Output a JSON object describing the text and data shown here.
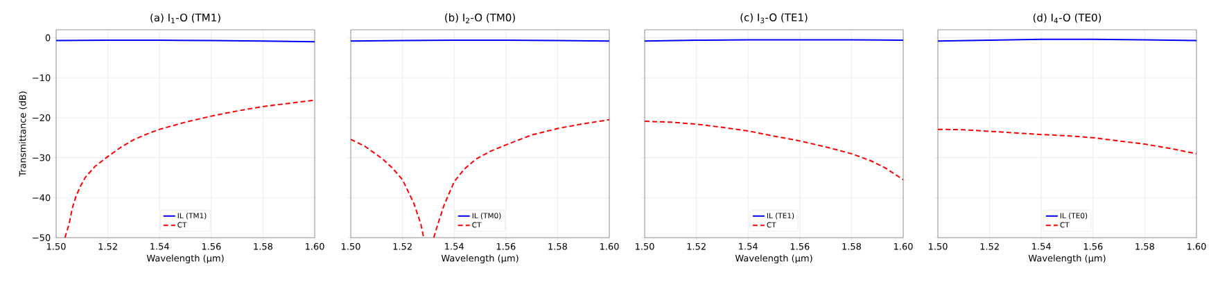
{
  "chart_data": [
    {
      "type": "line",
      "title": "(a)  I$_{1}$-O   (TM1)",
      "xlabel": "Wavelength (μm)",
      "ylabel": "Transmittance (dB)",
      "xlim": [
        1.5,
        1.6
      ],
      "ylim": [
        -50,
        2
      ],
      "xticks": [
        {
          "value": 1.5,
          "label": "1.50"
        },
        {
          "value": 1.52,
          "label": "1.52"
        },
        {
          "value": 1.54,
          "label": "1.54"
        },
        {
          "value": 1.56,
          "label": "1.56"
        },
        {
          "value": 1.58,
          "label": "1.58"
        },
        {
          "value": 1.6,
          "label": "1.60"
        }
      ],
      "yticks": [
        0,
        {
          "value": -10,
          "label": "−10"
        },
        {
          "value": -20,
          "label": "−20"
        },
        {
          "value": -30,
          "label": "−30"
        },
        {
          "value": -40,
          "label": "−40"
        },
        {
          "value": -50,
          "label": "−50"
        }
      ],
      "grid": true,
      "legend": "bottom",
      "series": [
        {
          "name": "IL (TM1)",
          "color": "#0000ff",
          "line_style": "solid",
          "x": [
            1.5,
            1.52,
            1.54,
            1.56,
            1.58,
            1.6
          ],
          "values": [
            -0.7,
            -0.6,
            -0.6,
            -0.7,
            -0.8,
            -1.0
          ]
        },
        {
          "name": "CT",
          "color": "#ff0000",
          "line_style": "dashed",
          "x": [
            1.5034,
            1.505,
            1.5063,
            1.5077,
            1.5095,
            1.5113,
            1.515,
            1.52,
            1.525,
            1.53,
            1.535,
            1.54,
            1.55,
            1.56,
            1.57,
            1.58,
            1.59,
            1.6
          ],
          "values": [
            -50,
            -46.6,
            -42.5,
            -39.6,
            -37,
            -34.9,
            -32.2,
            -29.7,
            -27.4,
            -25.5,
            -24.1,
            -22.9,
            -21.1,
            -19.6,
            -18.3,
            -17.2,
            -16.4,
            -15.6
          ]
        }
      ]
    },
    {
      "type": "line",
      "title": "(b)  I$_{2}$-O   (TM0)",
      "xlabel": "Wavelength (μm)",
      "xlim": [
        1.5,
        1.6
      ],
      "ylim": [
        -50,
        2
      ],
      "xticks": [
        {
          "value": 1.5,
          "label": "1.50"
        },
        {
          "value": 1.52,
          "label": "1.52"
        },
        {
          "value": 1.54,
          "label": "1.54"
        },
        {
          "value": 1.56,
          "label": "1.56"
        },
        {
          "value": 1.58,
          "label": "1.58"
        },
        {
          "value": 1.6,
          "label": "1.60"
        }
      ],
      "yticks": [
        {
          "value": 0,
          "label": null
        },
        {
          "value": -10,
          "label": null
        },
        {
          "value": -20,
          "label": null
        },
        {
          "value": -30,
          "label": null
        },
        {
          "value": -40,
          "label": null
        },
        {
          "value": -50,
          "label": null
        }
      ],
      "grid": true,
      "legend": "bottom",
      "tick_labels": "x",
      "series": [
        {
          "name": "IL (TM0)",
          "color": "#0000ff",
          "line_style": "solid",
          "x": [
            1.5,
            1.52,
            1.54,
            1.56,
            1.58,
            1.6
          ],
          "values": [
            -0.8,
            -0.7,
            -0.6,
            -0.6,
            -0.7,
            -0.8
          ]
        },
        {
          "name": "CT",
          "color": "#ff0000",
          "line_style": "dashed",
          "x": [
            1.5,
            1.5056,
            1.5119,
            1.516,
            1.52,
            1.5244,
            1.5271,
            1.5282,
            1.53,
            1.5321,
            1.5337,
            1.536,
            1.54,
            1.544,
            1.5485,
            1.554,
            1.56,
            1.57,
            1.58,
            1.59,
            1.6
          ],
          "values": [
            -25.4,
            -27.2,
            -30.1,
            -32.5,
            -35.5,
            -41.4,
            -46.6,
            -50,
            null,
            -50,
            -46.6,
            -42,
            -36,
            -32.8,
            -30.3,
            -28.4,
            -26.8,
            -24.3,
            -22.7,
            -21.5,
            -20.5
          ]
        }
      ]
    },
    {
      "type": "line",
      "title": "(c)  I$_{3}$-O   (TE1)",
      "xlabel": "Wavelength (μm)",
      "xlim": [
        1.5,
        1.6
      ],
      "ylim": [
        -50,
        2
      ],
      "xticks": [
        {
          "value": 1.5,
          "label": "1.50"
        },
        {
          "value": 1.52,
          "label": "1.52"
        },
        {
          "value": 1.54,
          "label": "1.54"
        },
        {
          "value": 1.56,
          "label": "1.56"
        },
        {
          "value": 1.58,
          "label": "1.58"
        },
        {
          "value": 1.6,
          "label": "1.60"
        }
      ],
      "yticks": [
        {
          "value": 0,
          "label": null
        },
        {
          "value": -10,
          "label": null
        },
        {
          "value": -20,
          "label": null
        },
        {
          "value": -30,
          "label": null
        },
        {
          "value": -40,
          "label": null
        },
        {
          "value": -50,
          "label": null
        }
      ],
      "grid": true,
      "legend": "bottom",
      "tick_labels": "x",
      "series": [
        {
          "name": "IL (TE1)",
          "color": "#0000ff",
          "line_style": "solid",
          "x": [
            1.5,
            1.52,
            1.54,
            1.56,
            1.58,
            1.6
          ],
          "values": [
            -0.8,
            -0.6,
            -0.5,
            -0.5,
            -0.5,
            -0.6
          ]
        },
        {
          "name": "CT",
          "color": "#ff0000",
          "line_style": "dashed",
          "x": [
            1.5,
            1.51,
            1.52,
            1.53,
            1.54,
            1.55,
            1.56,
            1.5706,
            1.58,
            1.5876,
            1.5929,
            1.6
          ],
          "values": [
            -20.9,
            -21.1,
            -21.6,
            -22.4,
            -23.3,
            -24.6,
            -25.8,
            -27.4,
            -29.0,
            -30.8,
            -32.5,
            -35.5
          ]
        }
      ]
    },
    {
      "type": "line",
      "title": "(d)  I$_{4}$-O   (TE0)",
      "xlabel": "Wavelength (μm)",
      "xlim": [
        1.5,
        1.6
      ],
      "ylim": [
        -50,
        2
      ],
      "xticks": [
        {
          "value": 1.5,
          "label": "1.50"
        },
        {
          "value": 1.52,
          "label": "1.52"
        },
        {
          "value": 1.54,
          "label": "1.54"
        },
        {
          "value": 1.56,
          "label": "1.56"
        },
        {
          "value": 1.58,
          "label": "1.58"
        },
        {
          "value": 1.6,
          "label": "1.60"
        }
      ],
      "yticks": [
        {
          "value": 0,
          "label": null
        },
        {
          "value": -10,
          "label": null
        },
        {
          "value": -20,
          "label": null
        },
        {
          "value": -30,
          "label": null
        },
        {
          "value": -40,
          "label": null
        },
        {
          "value": -50,
          "label": null
        }
      ],
      "grid": true,
      "legend": "bottom",
      "tick_labels": "x",
      "series": [
        {
          "name": "IL (TE0)",
          "color": "#0000ff",
          "line_style": "solid",
          "x": [
            1.5,
            1.52,
            1.54,
            1.56,
            1.58,
            1.6
          ],
          "values": [
            -0.8,
            -0.6,
            -0.4,
            -0.4,
            -0.5,
            -0.7
          ]
        },
        {
          "name": "CT",
          "color": "#ff0000",
          "line_style": "dashed",
          "x": [
            1.5,
            1.51,
            1.52,
            1.53,
            1.54,
            1.55,
            1.56,
            1.57,
            1.58,
            1.59,
            1.6
          ],
          "values": [
            -22.9,
            -23.0,
            -23.4,
            -23.8,
            -24.2,
            -24.5,
            -25.0,
            -25.8,
            -26.6,
            -27.7,
            -29.0
          ]
        }
      ]
    }
  ]
}
